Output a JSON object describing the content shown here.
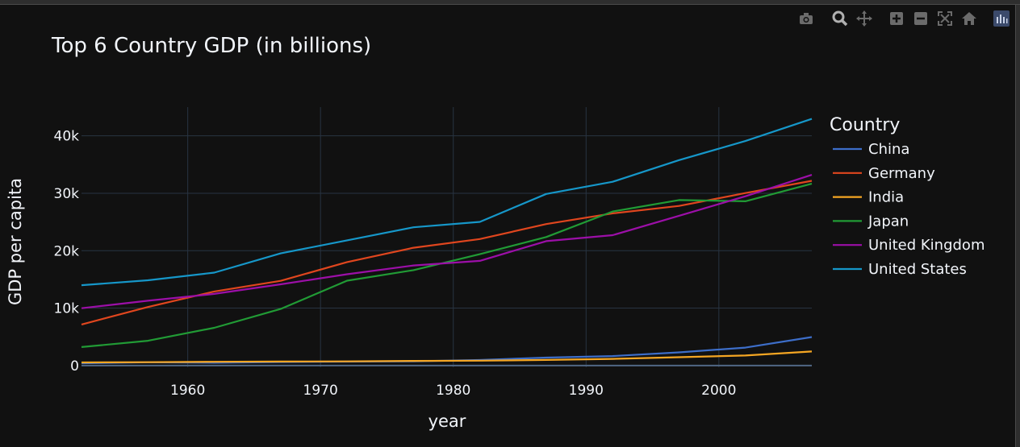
{
  "modebar": {
    "icons": [
      "camera-icon",
      "zoom-icon",
      "pan-icon",
      "zoom-in-icon",
      "zoom-out-icon",
      "autoscale-icon",
      "home-icon",
      "plotly-logo-icon"
    ]
  },
  "colors": {
    "background": "#111111",
    "grid": "#283442",
    "text": "#f2f5fa"
  },
  "chart_data": {
    "type": "line",
    "title": "Top 6 Country GDP (in billions)",
    "xlabel": "year",
    "ylabel": "GDP per capita",
    "legend_title": "Country",
    "legend_position": "right",
    "grid": true,
    "xlim": [
      1952,
      2007
    ],
    "ylim": [
      -300,
      45000
    ],
    "x_ticks": [
      1960,
      1970,
      1980,
      1990,
      2000
    ],
    "y_ticks": [
      0,
      10000,
      20000,
      30000,
      40000
    ],
    "y_tick_labels": [
      "0",
      "10k",
      "20k",
      "30k",
      "40k"
    ],
    "x": [
      1952,
      1957,
      1962,
      1967,
      1972,
      1977,
      1982,
      1987,
      1992,
      1997,
      2002,
      2007
    ],
    "series": [
      {
        "name": "China",
        "color": "#3d6ec9",
        "values": [
          400,
          576,
          488,
          613,
          677,
          741,
          962,
          1379,
          1656,
          2289,
          3119,
          4959
        ]
      },
      {
        "name": "Germany",
        "color": "#e0461e",
        "values": [
          7144,
          10188,
          12903,
          14746,
          18016,
          20513,
          22032,
          24639,
          26505,
          27789,
          30036,
          32170
        ]
      },
      {
        "name": "India",
        "color": "#f5a623",
        "values": [
          547,
          590,
          658,
          701,
          724,
          813,
          856,
          977,
          1164,
          1459,
          1747,
          2452
        ]
      },
      {
        "name": "Japan",
        "color": "#219b35",
        "values": [
          3217,
          4318,
          6577,
          9847,
          14779,
          16610,
          19384,
          22376,
          26825,
          28817,
          28605,
          31656
        ]
      },
      {
        "name": "United Kingdom",
        "color": "#9c0fa8",
        "values": [
          9980,
          11283,
          12477,
          14143,
          15895,
          17429,
          18232,
          21665,
          22706,
          26075,
          29479,
          33203
        ]
      },
      {
        "name": "United States",
        "color": "#1697c9",
        "values": [
          13990,
          14847,
          16173,
          19530,
          21806,
          24073,
          25010,
          29884,
          32004,
          35767,
          39097,
          42952
        ]
      }
    ]
  }
}
